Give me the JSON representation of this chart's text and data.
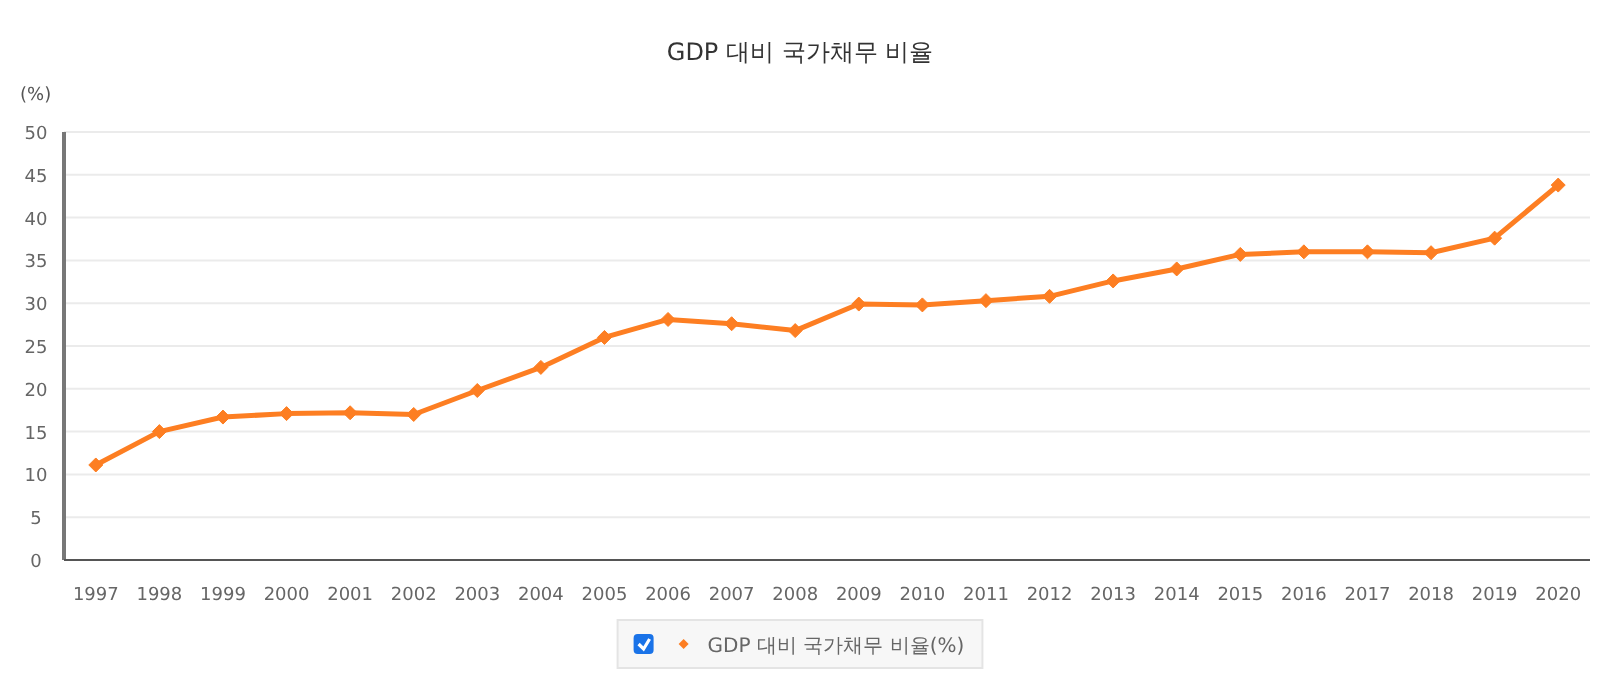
{
  "chart_data": {
    "type": "line",
    "title": "GDP 대비 국가채무 비율",
    "ylabel": "(%)",
    "categories": [
      "1997",
      "1998",
      "1999",
      "2000",
      "2001",
      "2002",
      "2003",
      "2004",
      "2005",
      "2006",
      "2007",
      "2008",
      "2009",
      "2010",
      "2011",
      "2012",
      "2013",
      "2014",
      "2015",
      "2016",
      "2017",
      "2018",
      "2019",
      "2020"
    ],
    "series": [
      {
        "name": "GDP 대비 국가채무 비율(%)",
        "color": "#fd7e22",
        "values": [
          11.1,
          15.0,
          16.7,
          17.1,
          17.2,
          17.0,
          19.8,
          22.5,
          26.0,
          28.1,
          27.6,
          26.8,
          29.9,
          29.8,
          30.3,
          30.8,
          32.6,
          34.0,
          35.7,
          36.0,
          36.0,
          35.9,
          37.6,
          43.8
        ]
      }
    ],
    "ylim": [
      0,
      50
    ],
    "yticks": [
      0,
      5,
      10,
      15,
      20,
      25,
      30,
      35,
      40,
      45,
      50
    ],
    "grid": "y",
    "legend": "bottom",
    "marker": "diamond",
    "line_style": "solid"
  }
}
